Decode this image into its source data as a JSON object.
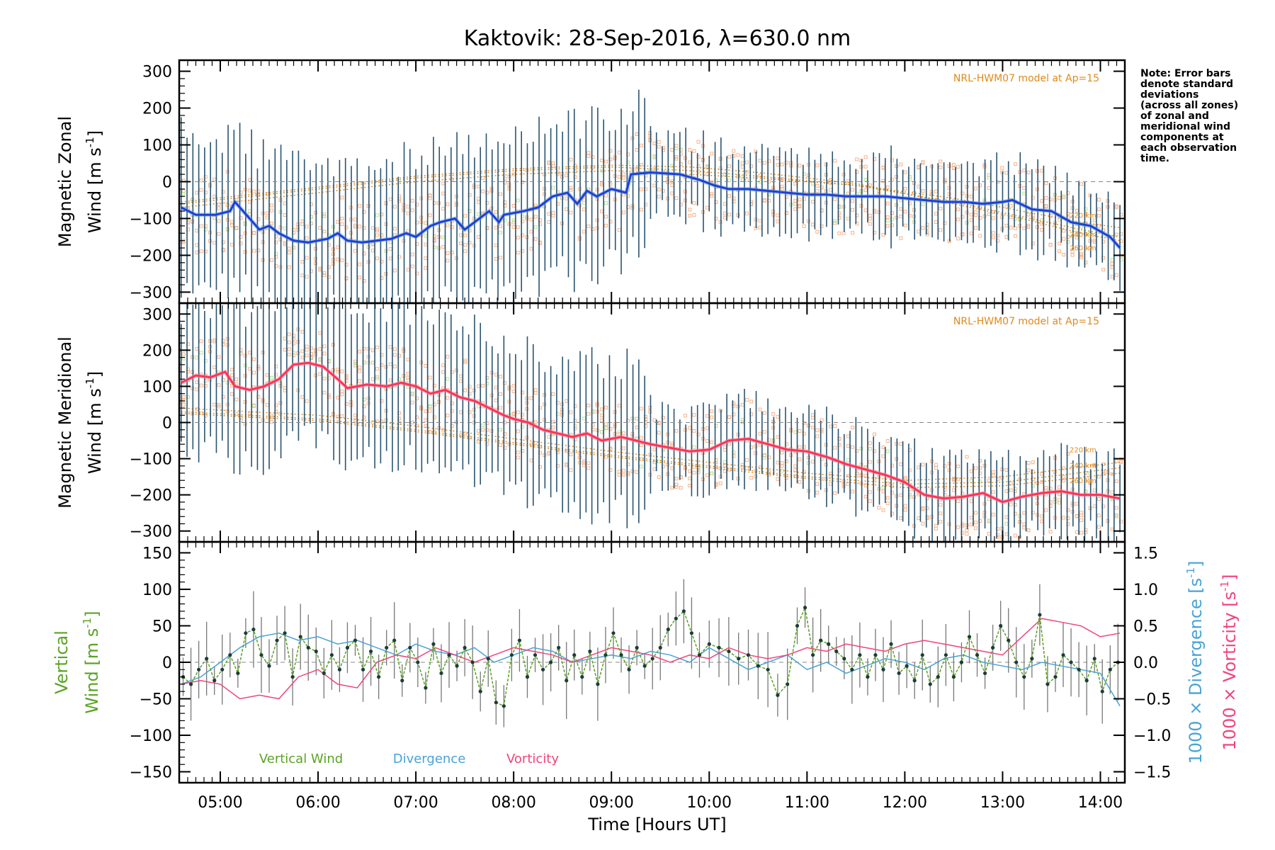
{
  "title": "Kaktovik: 28-Sep-2016, λ=630.0 nm",
  "note_lines": [
    "Note: Error bars",
    "denote standard",
    "deviations",
    "(across all zones)",
    "of zonal and",
    "meridional wind",
    "components at",
    "each observation",
    "time."
  ],
  "colors": {
    "axes": "#000000",
    "zonal": "#1f3fd6",
    "zonal_light": "#5aa0e0",
    "meridional": "#ff3355",
    "errbar": "#2a5470",
    "model_points": "#f5b48c",
    "model_lines": "#e08a1a",
    "vertical": "#5ba324",
    "divergence": "#4aa3d6",
    "vorticity": "#f0447a",
    "vert_err": "#777777",
    "vert_dot": "#1c3c3c",
    "zero": "#888888",
    "green_pts": "#b9e39a"
  },
  "xaxis": {
    "label": "Time [Hours UT]",
    "ticks": [
      "05:00",
      "06:00",
      "07:00",
      "08:00",
      "09:00",
      "10:00",
      "11:00",
      "12:00",
      "13:00",
      "14:00"
    ],
    "tick_hours": [
      5,
      6,
      7,
      8,
      9,
      10,
      11,
      12,
      13,
      14
    ],
    "range_hours": [
      4.58,
      14.25
    ]
  },
  "chart_data": [
    {
      "type": "line",
      "panel": "zonal",
      "ylabel_line1": "Magnetic Zonal",
      "ylabel_line2": "Wind [m s",
      "ylabel_sup": "-1",
      "ylabel_end": "]",
      "ylim": [
        -330,
        330
      ],
      "yticks": [
        300,
        200,
        100,
        0,
        -100,
        -200,
        -300
      ],
      "yticklabels": [
        "300",
        "200",
        "100",
        "0",
        "−100",
        "−200",
        "−300"
      ],
      "model_label": "NRL-HWM07 model at Ap=15",
      "model_line_labels": [
        "220 km",
        "240 km",
        "260 km"
      ],
      "series": [
        {
          "style": "mean",
          "x": [
            4.6,
            4.75,
            4.95,
            5.1,
            5.15,
            5.3,
            5.4,
            5.5,
            5.6,
            5.75,
            5.9,
            6.0,
            6.1,
            6.2,
            6.3,
            6.45,
            6.6,
            6.75,
            6.9,
            7.0,
            7.15,
            7.25,
            7.4,
            7.5,
            7.6,
            7.75,
            7.85,
            7.9,
            8.1,
            8.25,
            8.4,
            8.55,
            8.65,
            8.75,
            8.85,
            9.0,
            9.15,
            9.2,
            9.4,
            9.7,
            9.9,
            10.05,
            10.2,
            10.4,
            10.6,
            10.8,
            11.0,
            11.2,
            11.4,
            11.6,
            11.8,
            12.0,
            12.2,
            12.4,
            12.6,
            12.8,
            13.0,
            13.1,
            13.3,
            13.5,
            13.7,
            13.9,
            14.1,
            14.2
          ],
          "y": [
            -70,
            -90,
            -90,
            -80,
            -55,
            -100,
            -130,
            -120,
            -140,
            -160,
            -165,
            -160,
            -155,
            -140,
            -160,
            -165,
            -160,
            -155,
            -140,
            -150,
            -120,
            -110,
            -100,
            -130,
            -110,
            -80,
            -110,
            -90,
            -80,
            -70,
            -40,
            -30,
            -60,
            -25,
            -40,
            -20,
            -30,
            20,
            25,
            20,
            5,
            -10,
            -20,
            -20,
            -25,
            -30,
            -35,
            -35,
            -40,
            -40,
            -40,
            -45,
            -50,
            -55,
            -55,
            -60,
            -55,
            -50,
            -75,
            -80,
            -110,
            -120,
            -150,
            -180
          ]
        },
        {
          "style": "model",
          "name": "220 km",
          "x": [
            4.6,
            6.0,
            7.0,
            8.0,
            9.0,
            9.8,
            10.5,
            11.5,
            12.5,
            13.2,
            13.8,
            14.2
          ],
          "y": [
            -70,
            -30,
            0,
            20,
            30,
            20,
            10,
            -10,
            -45,
            -80,
            -110,
            -125
          ]
        },
        {
          "style": "model",
          "name": "240 km",
          "x": [
            4.6,
            6.0,
            7.0,
            8.0,
            9.0,
            9.8,
            10.5,
            11.5,
            12.5,
            13.2,
            13.8,
            14.2
          ],
          "y": [
            -60,
            -20,
            10,
            30,
            40,
            30,
            15,
            -10,
            -55,
            -95,
            -130,
            -150
          ]
        },
        {
          "style": "model",
          "name": "260 km",
          "x": [
            4.6,
            6.0,
            7.0,
            8.0,
            9.0,
            9.8,
            10.5,
            11.5,
            12.5,
            13.2,
            13.8,
            14.2
          ],
          "y": [
            -55,
            -15,
            15,
            35,
            45,
            40,
            25,
            -5,
            -60,
            -100,
            -140,
            -160
          ]
        }
      ]
    },
    {
      "type": "line",
      "panel": "meridional",
      "ylabel_line1": "Magnetic Meridional",
      "ylabel_line2": "Wind [m s",
      "ylabel_sup": "-1",
      "ylabel_end": "]",
      "ylim": [
        -330,
        330
      ],
      "yticks": [
        300,
        200,
        100,
        0,
        -100,
        -200,
        -300
      ],
      "yticklabels": [
        "300",
        "200",
        "100",
        "0",
        "−100",
        "−200",
        "−300"
      ],
      "model_label": "NRL-HWM07 model at Ap=15",
      "model_line_labels": [
        "220 km",
        "240 km",
        "260 km"
      ],
      "series": [
        {
          "style": "mean",
          "x": [
            4.6,
            4.75,
            4.9,
            5.05,
            5.15,
            5.3,
            5.45,
            5.6,
            5.75,
            5.9,
            6.05,
            6.2,
            6.3,
            6.5,
            6.7,
            6.85,
            7.0,
            7.15,
            7.3,
            7.45,
            7.6,
            7.75,
            7.9,
            8.0,
            8.15,
            8.3,
            8.45,
            8.6,
            8.75,
            8.9,
            9.1,
            9.25,
            9.4,
            9.6,
            9.8,
            10.0,
            10.2,
            10.4,
            10.6,
            10.8,
            11.0,
            11.2,
            11.4,
            11.6,
            11.8,
            12.0,
            12.2,
            12.4,
            12.6,
            12.8,
            13.0,
            13.2,
            13.4,
            13.6,
            13.8,
            14.0,
            14.2
          ],
          "y": [
            110,
            130,
            125,
            140,
            100,
            90,
            100,
            120,
            160,
            165,
            155,
            120,
            95,
            105,
            100,
            110,
            100,
            80,
            90,
            70,
            60,
            40,
            20,
            10,
            0,
            -20,
            -30,
            -40,
            -30,
            -50,
            -40,
            -50,
            -60,
            -70,
            -80,
            -75,
            -50,
            -45,
            -60,
            -75,
            -80,
            -95,
            -115,
            -130,
            -145,
            -165,
            -200,
            -210,
            -205,
            -195,
            -220,
            -205,
            -195,
            -190,
            -200,
            -200,
            -210
          ]
        },
        {
          "style": "model",
          "name": "220 km",
          "x": [
            4.6,
            6.0,
            7.0,
            8.0,
            9.0,
            10.0,
            11.0,
            12.0,
            13.0,
            14.2
          ],
          "y": [
            40,
            20,
            -10,
            -45,
            -80,
            -110,
            -140,
            -160,
            -150,
            -110
          ]
        },
        {
          "style": "model",
          "name": "240 km",
          "x": [
            4.6,
            6.0,
            7.0,
            8.0,
            9.0,
            10.0,
            11.0,
            12.0,
            13.0,
            14.2
          ],
          "y": [
            30,
            10,
            -20,
            -55,
            -90,
            -120,
            -150,
            -170,
            -165,
            -125
          ]
        },
        {
          "style": "model",
          "name": "260 km",
          "x": [
            4.6,
            6.0,
            7.0,
            8.0,
            9.0,
            10.0,
            11.0,
            12.0,
            13.0,
            14.2
          ],
          "y": [
            25,
            5,
            -25,
            -60,
            -95,
            -125,
            -155,
            -180,
            -175,
            -140
          ]
        }
      ]
    },
    {
      "type": "line",
      "panel": "vertical",
      "ylabel_left_green": "Vertical",
      "ylabel_left_line2": "Wind [m s",
      "ylabel_sup": "-1",
      "ylabel_end": "]",
      "ylim": [
        -165,
        165
      ],
      "yticks": [
        150,
        100,
        50,
        0,
        -50,
        -100,
        -150
      ],
      "yticklabels": [
        "150",
        "100",
        "50",
        "0",
        "−50",
        "−100",
        "−150"
      ],
      "y2lim": [
        -1.65,
        1.65
      ],
      "y2ticks": [
        1.5,
        1.0,
        0.5,
        0.0,
        -0.5,
        -1.0,
        -1.5
      ],
      "y2ticklabels": [
        "1.5",
        "1.0",
        "0.5",
        "0.0",
        "−0.5",
        "−1.0",
        "−1.5"
      ],
      "y2label_div": "1000 × Divergence [s",
      "y2label_vort": "1000 × Vorticity [s",
      "legend": [
        "Vertical Wind",
        "Divergence",
        "Vorticity"
      ],
      "series": [
        {
          "name": "Vertical Wind",
          "x": [
            4.62,
            4.7,
            4.78,
            4.86,
            4.94,
            5.02,
            5.1,
            5.18,
            5.26,
            5.34,
            5.42,
            5.5,
            5.58,
            5.66,
            5.74,
            5.82,
            5.9,
            5.98,
            6.06,
            6.14,
            6.22,
            6.3,
            6.38,
            6.46,
            6.54,
            6.62,
            6.7,
            6.78,
            6.86,
            6.94,
            7.02,
            7.1,
            7.18,
            7.26,
            7.34,
            7.42,
            7.5,
            7.58,
            7.66,
            7.74,
            7.82,
            7.9,
            7.98,
            8.06,
            8.14,
            8.22,
            8.3,
            8.38,
            8.46,
            8.54,
            8.62,
            8.7,
            8.78,
            8.86,
            8.94,
            9.02,
            9.1,
            9.18,
            9.26,
            9.34,
            9.42,
            9.5,
            9.58,
            9.66,
            9.74,
            9.82,
            9.9,
            10.0,
            10.1,
            10.2,
            10.3,
            10.4,
            10.5,
            10.6,
            10.7,
            10.8,
            10.9,
            10.98,
            11.06,
            11.14,
            11.22,
            11.3,
            11.38,
            11.46,
            11.54,
            11.62,
            11.7,
            11.78,
            11.86,
            11.94,
            12.02,
            12.1,
            12.18,
            12.26,
            12.34,
            12.42,
            12.5,
            12.58,
            12.66,
            12.74,
            12.82,
            12.9,
            12.98,
            13.06,
            13.14,
            13.22,
            13.3,
            13.38,
            13.46,
            13.54,
            13.62,
            13.7,
            13.78,
            13.86,
            13.94,
            14.02,
            14.1,
            14.18
          ],
          "y": [
            -20,
            -30,
            -10,
            5,
            -25,
            -10,
            10,
            -15,
            40,
            45,
            10,
            -5,
            30,
            40,
            -20,
            35,
            20,
            15,
            -15,
            10,
            -10,
            20,
            30,
            -10,
            15,
            -20,
            20,
            30,
            -25,
            20,
            0,
            -35,
            25,
            -15,
            10,
            -5,
            20,
            0,
            -40,
            5,
            -55,
            -60,
            10,
            30,
            -20,
            10,
            -10,
            0,
            20,
            -25,
            10,
            -20,
            15,
            -30,
            10,
            40,
            10,
            -10,
            20,
            -5,
            5,
            20,
            45,
            60,
            70,
            40,
            10,
            25,
            20,
            15,
            5,
            10,
            -5,
            -10,
            -45,
            -30,
            50,
            75,
            10,
            30,
            25,
            15,
            5,
            -10,
            10,
            -20,
            10,
            -10,
            25,
            -15,
            -5,
            -25,
            10,
            -30,
            -20,
            10,
            -20,
            0,
            35,
            10,
            -15,
            20,
            50,
            30,
            0,
            -20,
            5,
            65,
            -30,
            -20,
            10,
            0,
            -10,
            -25,
            5,
            -40,
            -10,
            0
          ]
        },
        {
          "name": "Divergence",
          "x": [
            4.6,
            4.8,
            5.0,
            5.2,
            5.4,
            5.6,
            5.8,
            6.0,
            6.2,
            6.4,
            6.6,
            6.8,
            7.0,
            7.2,
            7.4,
            7.6,
            7.8,
            8.0,
            8.2,
            8.4,
            8.6,
            8.8,
            9.0,
            9.2,
            9.4,
            9.6,
            9.8,
            10.0,
            10.2,
            10.4,
            10.6,
            10.8,
            11.0,
            11.2,
            11.4,
            11.6,
            11.8,
            12.0,
            12.2,
            12.4,
            12.6,
            12.8,
            13.0,
            13.2,
            13.4,
            13.6,
            13.8,
            14.0,
            14.2
          ],
          "y": [
            -0.3,
            -0.2,
            0.0,
            0.2,
            0.35,
            0.4,
            0.3,
            0.35,
            0.25,
            0.3,
            0.2,
            0.1,
            0.25,
            0.15,
            0.1,
            0.2,
            0.0,
            0.1,
            0.2,
            0.15,
            0.0,
            0.05,
            0.1,
            0.05,
            0.15,
            0.1,
            0.0,
            0.2,
            0.05,
            -0.1,
            0.0,
            0.1,
            -0.1,
            0.0,
            -0.15,
            -0.05,
            0.05,
            0.0,
            -0.1,
            0.05,
            0.1,
            0.0,
            -0.05,
            -0.1,
            0.0,
            -0.05,
            -0.1,
            -0.15,
            -0.6
          ]
        },
        {
          "name": "Vorticity",
          "x": [
            4.6,
            4.8,
            5.0,
            5.2,
            5.4,
            5.6,
            5.8,
            6.0,
            6.2,
            6.4,
            6.6,
            6.8,
            7.0,
            7.2,
            7.4,
            7.6,
            7.8,
            8.0,
            8.2,
            8.4,
            8.6,
            8.8,
            9.0,
            9.2,
            9.4,
            9.6,
            9.8,
            10.0,
            10.2,
            10.4,
            10.6,
            10.8,
            11.0,
            11.2,
            11.4,
            11.6,
            11.8,
            12.0,
            12.2,
            12.4,
            12.6,
            12.8,
            13.0,
            13.2,
            13.4,
            13.6,
            13.8,
            14.0,
            14.2
          ],
          "y": [
            -0.3,
            -0.25,
            -0.3,
            -0.5,
            -0.45,
            -0.5,
            -0.2,
            -0.1,
            -0.3,
            -0.35,
            0.0,
            0.1,
            0.05,
            0.2,
            0.1,
            0.0,
            0.1,
            0.2,
            0.15,
            0.1,
            0.0,
            0.1,
            0.2,
            0.15,
            0.1,
            0.0,
            0.1,
            0.05,
            0.2,
            0.1,
            0.05,
            0.1,
            0.2,
            0.15,
            0.25,
            0.2,
            0.15,
            0.25,
            0.3,
            0.25,
            0.2,
            0.15,
            0.1,
            0.35,
            0.6,
            0.55,
            0.5,
            0.35,
            0.4
          ]
        }
      ]
    }
  ]
}
